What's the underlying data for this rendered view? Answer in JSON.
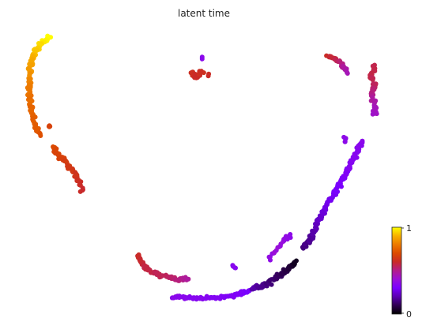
{
  "chart_data": {
    "type": "scatter",
    "title": "latent time",
    "xlabel": "",
    "ylabel": "",
    "axes_visible": false,
    "colormap": "gnuplot",
    "colorbar": {
      "position": "right",
      "min": 0,
      "max": 1,
      "tick_labels": [
        "0",
        "1"
      ]
    },
    "clusters": [
      {
        "path": [
          [
            63,
            46
          ],
          [
            54,
            54
          ],
          [
            45,
            64
          ],
          [
            40,
            76
          ],
          [
            37,
            92
          ],
          [
            37,
            108
          ],
          [
            37,
            124
          ],
          [
            40,
            140
          ],
          [
            44,
            156
          ],
          [
            50,
            172
          ]
        ],
        "t": [
          1.0,
          0.97,
          0.93,
          0.89,
          0.85,
          0.81,
          0.78,
          0.76,
          0.74,
          0.72
        ],
        "n": 140,
        "spread": 4
      },
      {
        "path": [
          [
            66,
            186
          ],
          [
            74,
            196
          ],
          [
            83,
            206
          ],
          [
            92,
            216
          ],
          [
            99,
            228
          ],
          [
            105,
            242
          ]
        ],
        "t": [
          0.7,
          0.68,
          0.66,
          0.64,
          0.62,
          0.6
        ],
        "n": 60,
        "spread": 4
      },
      {
        "path": [
          [
            62,
            160
          ],
          [
            64,
            160
          ]
        ],
        "t": [
          0.68,
          0.68
        ],
        "n": 4,
        "spread": 1.5
      },
      {
        "path": [
          [
            243,
            92
          ],
          [
            249,
            97
          ],
          [
            256,
            90
          ]
        ],
        "t": [
          0.62,
          0.6,
          0.62
        ],
        "n": 35,
        "spread": 4
      },
      {
        "path": [
          [
            256,
            72
          ],
          [
            256,
            74
          ]
        ],
        "t": [
          0.35,
          0.35
        ],
        "n": 2,
        "spread": 1
      },
      {
        "path": [
          [
            264,
            94
          ],
          [
            264,
            96
          ]
        ],
        "t": [
          0.6,
          0.6
        ],
        "n": 2,
        "spread": 1
      },
      {
        "path": [
          [
            415,
            70
          ],
          [
            424,
            74
          ],
          [
            433,
            82
          ],
          [
            440,
            92
          ]
        ],
        "t": [
          0.6,
          0.58,
          0.5,
          0.45
        ],
        "n": 35,
        "spread": 3
      },
      {
        "path": [
          [
            474,
            84
          ],
          [
            470,
            96
          ],
          [
            474,
            108
          ],
          [
            470,
            120
          ],
          [
            475,
            134
          ],
          [
            474,
            146
          ]
        ],
        "t": [
          0.57,
          0.57,
          0.55,
          0.5,
          0.45,
          0.42
        ],
        "n": 70,
        "spread": 4
      },
      {
        "path": [
          [
            174,
            324
          ],
          [
            182,
            338
          ],
          [
            195,
            346
          ],
          [
            210,
            350
          ],
          [
            225,
            354
          ],
          [
            238,
            354
          ]
        ],
        "t": [
          0.6,
          0.58,
          0.56,
          0.55,
          0.52,
          0.48
        ],
        "n": 70,
        "spread": 3.5
      },
      {
        "path": [
          [
            218,
            376
          ],
          [
            242,
            378
          ],
          [
            270,
            378
          ],
          [
            298,
            374
          ],
          [
            316,
            368
          ]
        ],
        "t": [
          0.36,
          0.34,
          0.33,
          0.32,
          0.3
        ],
        "n": 95,
        "spread": 3
      },
      {
        "path": [
          [
            318,
            366
          ],
          [
            334,
            362
          ],
          [
            350,
            352
          ],
          [
            364,
            342
          ],
          [
            374,
            332
          ]
        ],
        "t": [
          0.2,
          0.16,
          0.12,
          0.08,
          0.04
        ],
        "n": 75,
        "spread": 4
      },
      {
        "path": [
          [
            294,
            336
          ],
          [
            298,
            340
          ]
        ],
        "t": [
          0.34,
          0.34
        ],
        "n": 5,
        "spread": 2
      },
      {
        "path": [
          [
            340,
            328
          ],
          [
            350,
            316
          ],
          [
            360,
            304
          ],
          [
            368,
            298
          ]
        ],
        "t": [
          0.36,
          0.4,
          0.38,
          0.36
        ],
        "n": 20,
        "spread": 3
      },
      {
        "path": [
          [
            384,
            314
          ],
          [
            394,
            300
          ],
          [
            402,
            282
          ],
          [
            412,
            264
          ],
          [
            422,
            246
          ],
          [
            432,
            230
          ],
          [
            442,
            212
          ],
          [
            450,
            196
          ],
          [
            458,
            178
          ]
        ],
        "t": [
          0.14,
          0.18,
          0.22,
          0.26,
          0.29,
          0.31,
          0.33,
          0.34,
          0.35
        ],
        "n": 150,
        "spread": 4
      },
      {
        "path": [
          [
            436,
            174
          ],
          [
            438,
            180
          ]
        ],
        "t": [
          0.36,
          0.36
        ],
        "n": 5,
        "spread": 2
      }
    ]
  }
}
